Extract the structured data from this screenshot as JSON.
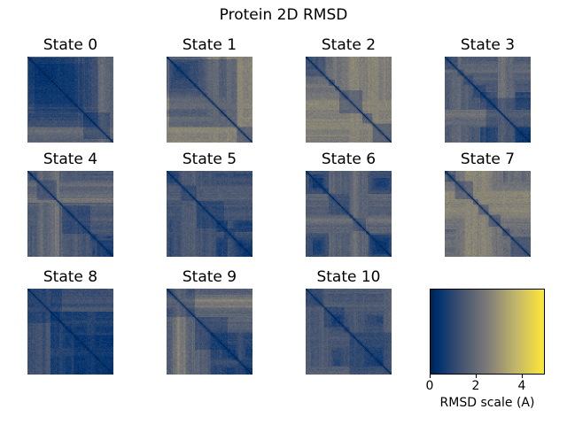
{
  "figure": {
    "title": "Protein 2D RMSD",
    "background_color": "#ffffff",
    "text_color": "#000000"
  },
  "subplots": [
    {
      "title": "State 0"
    },
    {
      "title": "State 1"
    },
    {
      "title": "State 2"
    },
    {
      "title": "State 3"
    },
    {
      "title": "State 4"
    },
    {
      "title": "State 5"
    },
    {
      "title": "State 6"
    },
    {
      "title": "State 7"
    },
    {
      "title": "State 8"
    },
    {
      "title": "State 9"
    },
    {
      "title": "State 10"
    }
  ],
  "colorbar": {
    "label": "RMSD scale (A)",
    "ticks": [
      "0",
      "2",
      "4"
    ],
    "range": [
      0,
      5
    ],
    "orientation": "horizontal",
    "colormap": "cividis",
    "color_low": "#00224e",
    "color_mid": "#7d7b78",
    "color_high": "#fee838"
  },
  "chart_data": {
    "type": "heatmap",
    "title": "Protein 2D RMSD",
    "subplot_titles": [
      "State 0",
      "State 1",
      "State 2",
      "State 3",
      "State 4",
      "State 5",
      "State 6",
      "State 7",
      "State 8",
      "State 9",
      "State 10"
    ],
    "layout": {
      "rows": 3,
      "cols": 4,
      "last_cell": "colorbar",
      "axes_visible": false
    },
    "matrix": {
      "rows": 100,
      "cols": 100,
      "symmetric": true,
      "diagonal_value": 0,
      "typical_offdiagonal_range": [
        0.8,
        3.0
      ],
      "description": "pairwise frame-vs-frame RMSD matrix per conformational state; dark blue diagonal (RMSD 0), mostly dark-blue/gray block texture"
    },
    "value_unit": "Angstrom",
    "colorbar": {
      "label": "RMSD scale (A)",
      "tick_values": [
        0,
        2,
        4
      ],
      "range": [
        0,
        5
      ],
      "colormap": "cividis",
      "orientation": "horizontal"
    },
    "colormap_anchors": {
      "0.00": "#00224e",
      "0.07": "#00326f",
      "0.25": "#3e4f6f",
      "0.50": "#7d7b78",
      "0.75": "#c1b56b",
      "1.00": "#fee838"
    }
  }
}
